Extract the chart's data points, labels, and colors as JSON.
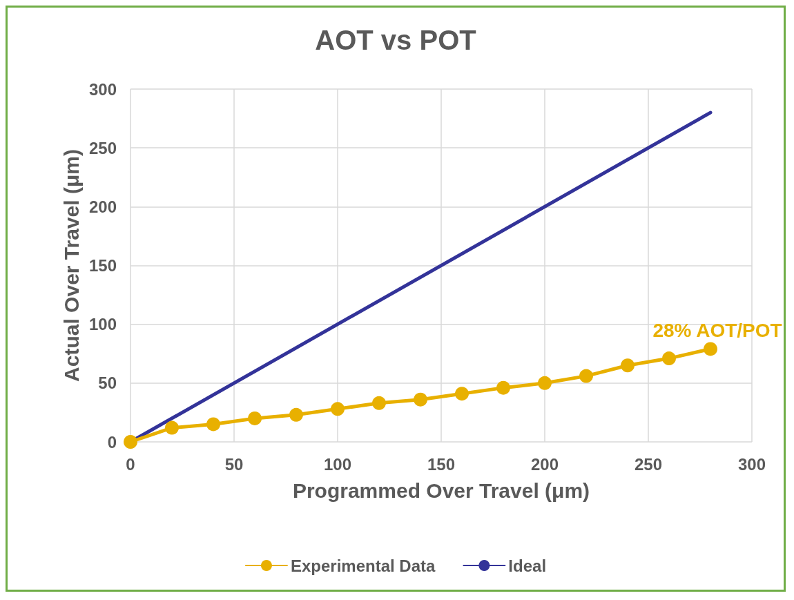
{
  "chart_data": {
    "type": "line",
    "title": "AOT vs POT",
    "xlabel": "Programmed Over Travel (μm)",
    "ylabel": "Actual Over Travel (μm)",
    "series": [
      {
        "name": "Experimental Data",
        "color": "#e8b000",
        "marker": "circle",
        "x": [
          0,
          20,
          40,
          60,
          80,
          100,
          120,
          140,
          160,
          180,
          200,
          220,
          240,
          260,
          280
        ],
        "values": [
          0,
          12,
          15,
          20,
          23,
          28,
          33,
          36,
          41,
          46,
          50,
          56,
          65,
          71,
          79
        ]
      },
      {
        "name": "Ideal",
        "color": "#333399",
        "marker": "none",
        "x": [
          0,
          280
        ],
        "values": [
          0,
          280
        ]
      }
    ],
    "annotations": [
      {
        "text": "28% AOT/POT",
        "x": 280,
        "y": 79
      }
    ],
    "xlim": [
      0,
      300
    ],
    "xticks": [
      0,
      50,
      100,
      150,
      200,
      250,
      300
    ],
    "ylim": [
      0,
      300
    ],
    "yticks": [
      0,
      50,
      100,
      150,
      200,
      250,
      300
    ],
    "grid": true,
    "legend": "bottom",
    "line_style": "solid"
  }
}
